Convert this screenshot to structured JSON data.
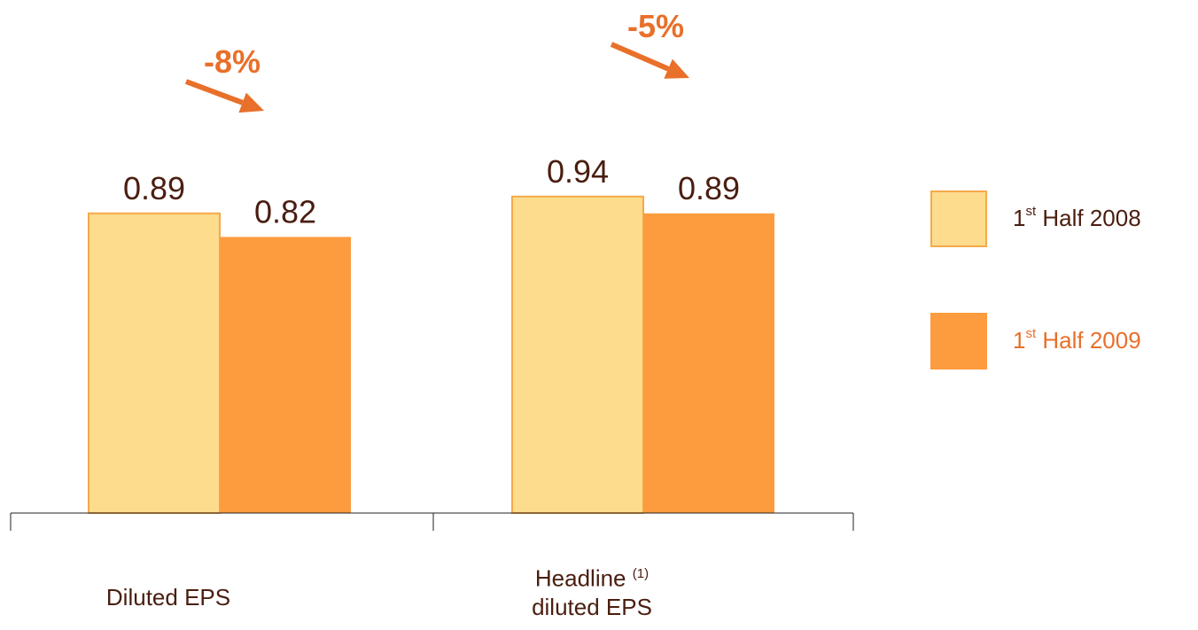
{
  "colors": {
    "series_2008": "#fddc8e",
    "series_2008_border": "#f6a94a",
    "series_2009": "#fd9b3f",
    "text_dark": "#4a1e10",
    "accent": "#e8702a"
  },
  "legend": {
    "item_2008": {
      "prefix": "1",
      "sup": "st",
      "rest": " Half 2008"
    },
    "item_2009": {
      "prefix": "1",
      "sup": "st",
      "rest": " Half 2009"
    }
  },
  "categories_display": {
    "diluted": {
      "line1": "Diluted EPS"
    },
    "headline": {
      "line1": "Headline ",
      "sup": "(1)",
      "line2": "diluted EPS"
    }
  },
  "chart_data": {
    "type": "bar",
    "categories": [
      "Diluted EPS",
      "Headline (1) diluted EPS"
    ],
    "series": [
      {
        "name": "1st Half 2008",
        "values": [
          0.89,
          0.94
        ]
      },
      {
        "name": "1st Half 2009",
        "values": [
          0.82,
          0.89
        ]
      }
    ],
    "data_labels": [
      [
        "0.89",
        "0.82"
      ],
      [
        "0.94",
        "0.89"
      ]
    ],
    "annotations": [
      "-8%",
      "-5%"
    ],
    "ylim": [
      0,
      1.1
    ],
    "grid": false,
    "legend_position": "right"
  }
}
